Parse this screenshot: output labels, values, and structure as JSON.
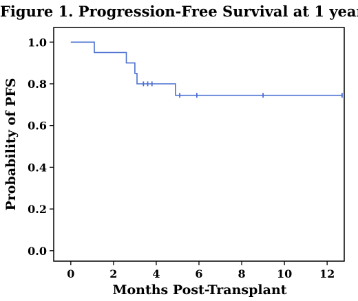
{
  "chart_data": {
    "type": "line",
    "title": "Figure 1. Progression-Free Survival at 1 year",
    "xlabel": "Months Post-Transplant",
    "ylabel": "Probability of PFS",
    "xlim": [
      -0.8,
      12.8
    ],
    "ylim": [
      -0.05,
      1.07
    ],
    "x_ticks": [
      0,
      2,
      4,
      6,
      8,
      10,
      12
    ],
    "x_tick_labels": [
      "0",
      "2",
      "4",
      "6",
      "8",
      "10",
      "12"
    ],
    "y_ticks": [
      0.0,
      0.2,
      0.4,
      0.6,
      0.8,
      1.0
    ],
    "y_tick_labels": [
      "0.0",
      "0.2",
      "0.4",
      "0.6",
      "0.8",
      "1.0"
    ],
    "grid": false,
    "series": [
      {
        "color": "#4a6fd0",
        "step_points": [
          [
            0.0,
            1.0
          ],
          [
            1.1,
            1.0
          ],
          [
            1.1,
            0.95
          ],
          [
            2.6,
            0.95
          ],
          [
            2.6,
            0.9
          ],
          [
            3.0,
            0.9
          ],
          [
            3.0,
            0.85
          ],
          [
            3.1,
            0.85
          ],
          [
            3.1,
            0.8
          ],
          [
            4.9,
            0.8
          ],
          [
            4.9,
            0.745
          ],
          [
            12.7,
            0.745
          ]
        ],
        "censor_marks": [
          [
            3.4,
            0.8
          ],
          [
            3.6,
            0.8
          ],
          [
            3.8,
            0.8
          ],
          [
            5.1,
            0.745
          ],
          [
            5.9,
            0.745
          ],
          [
            9.0,
            0.745
          ],
          [
            12.7,
            0.745
          ]
        ]
      }
    ]
  }
}
